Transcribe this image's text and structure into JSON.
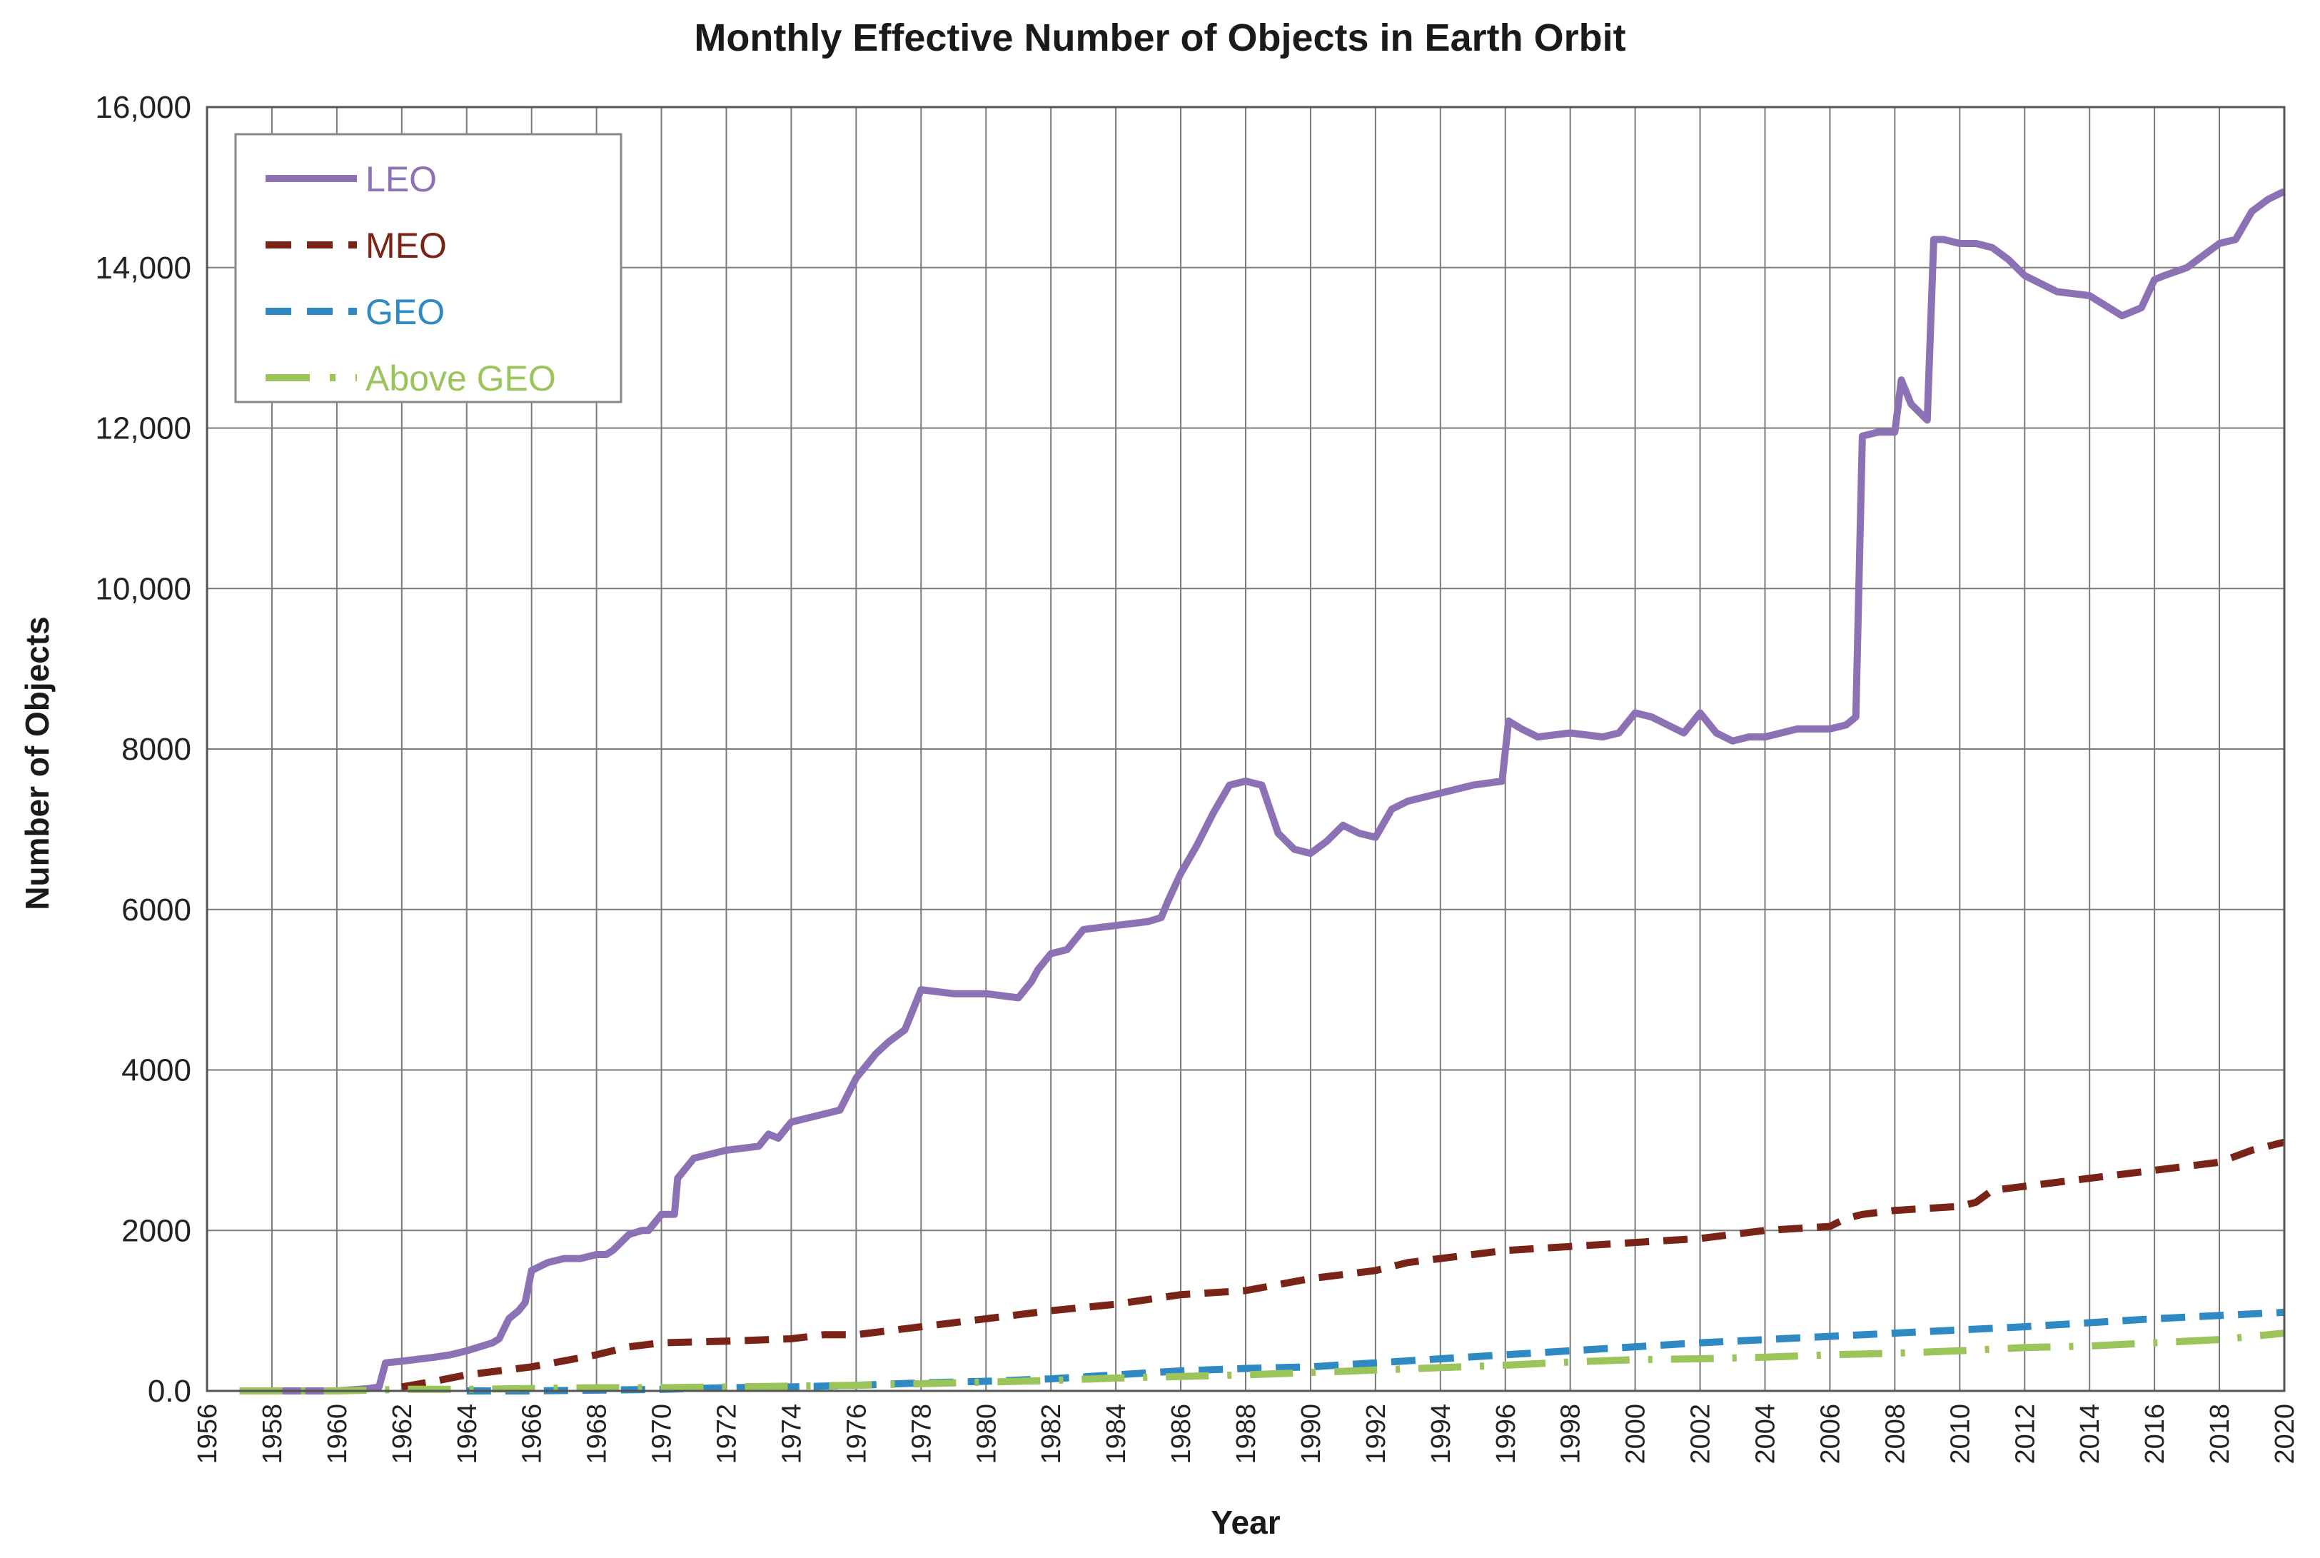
{
  "chart_data": {
    "type": "line",
    "title": "Monthly Effective Number of Objects in Earth Orbit",
    "xlabel": "Year",
    "ylabel": "Number of Objects",
    "xlim": [
      1956,
      2020
    ],
    "ylim": [
      0,
      16000
    ],
    "x_ticks": [
      1956,
      1958,
      1960,
      1962,
      1964,
      1966,
      1968,
      1970,
      1972,
      1974,
      1976,
      1978,
      1980,
      1982,
      1984,
      1986,
      1988,
      1990,
      1992,
      1994,
      1996,
      1998,
      2000,
      2002,
      2004,
      2006,
      2008,
      2010,
      2012,
      2014,
      2016,
      2018,
      2020
    ],
    "y_ticks": [
      {
        "value": 0,
        "label": "0.0"
      },
      {
        "value": 2000,
        "label": "2000"
      },
      {
        "value": 4000,
        "label": "4000"
      },
      {
        "value": 6000,
        "label": "6000"
      },
      {
        "value": 8000,
        "label": "8000"
      },
      {
        "value": 10000,
        "label": "10,000"
      },
      {
        "value": 12000,
        "label": "12,000"
      },
      {
        "value": 14000,
        "label": "14,000"
      },
      {
        "value": 16000,
        "label": "16,000"
      }
    ],
    "grid": true,
    "legend_position": "top-left",
    "series": [
      {
        "name": "LEO",
        "color": "#8c72b4",
        "style": "solid",
        "x": [
          1957.0,
          1958.0,
          1959.0,
          1960.0,
          1961.0,
          1961.3,
          1961.5,
          1962.0,
          1963.0,
          1963.5,
          1964.0,
          1964.8,
          1965.0,
          1965.3,
          1965.6,
          1965.8,
          1966.0,
          1966.5,
          1967.0,
          1967.5,
          1968.0,
          1968.3,
          1968.5,
          1969.0,
          1969.4,
          1969.6,
          1970.0,
          1970.4,
          1970.5,
          1971.0,
          1972.0,
          1973.0,
          1973.3,
          1973.6,
          1974.0,
          1975.0,
          1975.5,
          1976.0,
          1976.4,
          1976.6,
          1977.0,
          1977.5,
          1978.0,
          1979.0,
          1980.0,
          1981.0,
          1981.4,
          1981.6,
          1982.0,
          1982.5,
          1983.0,
          1984.0,
          1985.0,
          1985.4,
          1985.6,
          1986.0,
          1986.5,
          1987.0,
          1987.5,
          1988.0,
          1988.5,
          1989.0,
          1989.5,
          1990.0,
          1990.5,
          1991.0,
          1991.5,
          1992.0,
          1992.5,
          1993.0,
          1993.5,
          1994.0,
          1995.0,
          1995.9,
          1996.1,
          1996.5,
          1997.0,
          1998.0,
          1999.0,
          1999.5,
          2000.0,
          2000.5,
          2001.0,
          2001.5,
          2002.0,
          2002.5,
          2003.0,
          2003.5,
          2004.0,
          2004.5,
          2005.0,
          2006.0,
          2006.5,
          2006.8,
          2007.0,
          2007.5,
          2008.0,
          2008.2,
          2008.5,
          2009.0,
          2009.2,
          2009.5,
          2010.0,
          2010.5,
          2011.0,
          2011.5,
          2012.0,
          2013.0,
          2014.0,
          2015.0,
          2015.3,
          2015.6,
          2016.0,
          2016.3,
          2017.0,
          2018.0,
          2018.5,
          2019.0,
          2019.5,
          2020.0
        ],
        "y": [
          0,
          0,
          0,
          0,
          30,
          50,
          350,
          370,
          420,
          450,
          500,
          600,
          650,
          900,
          1000,
          1100,
          1500,
          1600,
          1650,
          1650,
          1700,
          1700,
          1750,
          1950,
          2000,
          2000,
          2200,
          2200,
          2650,
          2900,
          3000,
          3050,
          3200,
          3150,
          3350,
          3450,
          3500,
          3900,
          4100,
          4200,
          4350,
          4500,
          5000,
          4950,
          4950,
          4900,
          5100,
          5250,
          5450,
          5500,
          5750,
          5800,
          5850,
          5900,
          6100,
          6450,
          6800,
          7200,
          7550,
          7600,
          7550,
          6950,
          6750,
          6700,
          6850,
          7050,
          6950,
          6900,
          7250,
          7350,
          7400,
          7450,
          7550,
          7600,
          8350,
          8250,
          8150,
          8200,
          8150,
          8200,
          8450,
          8400,
          8300,
          8200,
          8450,
          8200,
          8100,
          8150,
          8150,
          8200,
          8250,
          8250,
          8300,
          8400,
          11900,
          11950,
          11950,
          12600,
          12300,
          12100,
          14350,
          14350,
          14300,
          14300,
          14250,
          14100,
          13900,
          13700,
          13650,
          13400,
          13450,
          13500,
          13850,
          13900,
          14000,
          14300,
          14350,
          14700,
          14850,
          14950
        ]
      },
      {
        "name": "MEO",
        "color": "#7a2418",
        "style": "dashed",
        "x": [
          1962,
          1963,
          1964,
          1966,
          1968,
          1969,
          1970,
          1972,
          1974,
          1975,
          1976,
          1978,
          1980,
          1982,
          1984,
          1986,
          1988,
          1990,
          1992,
          1993,
          1994,
          1996,
          1998,
          2000,
          2002,
          2003,
          2004,
          2006,
          2006.5,
          2007,
          2008,
          2010,
          2010.5,
          2011,
          2012,
          2014,
          2016,
          2018,
          2019,
          2020
        ],
        "y": [
          50,
          120,
          200,
          300,
          450,
          550,
          600,
          620,
          650,
          700,
          700,
          800,
          900,
          1000,
          1080,
          1200,
          1250,
          1400,
          1500,
          1600,
          1650,
          1750,
          1800,
          1850,
          1900,
          1950,
          2000,
          2050,
          2150,
          2200,
          2250,
          2300,
          2350,
          2500,
          2550,
          2650,
          2750,
          2850,
          3000,
          3100
        ]
      },
      {
        "name": "GEO",
        "color": "#2f8ac4",
        "style": "dashed",
        "x": [
          1964,
          1966,
          1968,
          1970,
          1972,
          1974,
          1976,
          1978,
          1980,
          1982,
          1984,
          1986,
          1988,
          1990,
          1992,
          1994,
          1996,
          1998,
          2000,
          2002,
          2004,
          2006,
          2008,
          2010,
          2012,
          2014,
          2016,
          2018,
          2020
        ],
        "y": [
          0,
          0,
          10,
          20,
          40,
          50,
          70,
          100,
          120,
          150,
          200,
          250,
          280,
          300,
          350,
          400,
          450,
          500,
          550,
          600,
          640,
          680,
          720,
          760,
          800,
          850,
          900,
          940,
          980
        ]
      },
      {
        "name": "Above GEO",
        "color": "#9bc45a",
        "style": "dash-dot",
        "x": [
          1957,
          1960,
          1962,
          1964,
          1966,
          1968,
          1970,
          1972,
          1974,
          1976,
          1978,
          1980,
          1982,
          1984,
          1986,
          1988,
          1990,
          1992,
          1994,
          1996,
          1998,
          2000,
          2002,
          2004,
          2006,
          2008,
          2010,
          2012,
          2014,
          2016,
          2018,
          2020
        ],
        "y": [
          0,
          0,
          20,
          20,
          30,
          40,
          40,
          50,
          60,
          70,
          90,
          110,
          130,
          160,
          180,
          200,
          230,
          260,
          290,
          320,
          360,
          390,
          400,
          420,
          450,
          470,
          500,
          540,
          560,
          600,
          640,
          720
        ]
      }
    ]
  }
}
